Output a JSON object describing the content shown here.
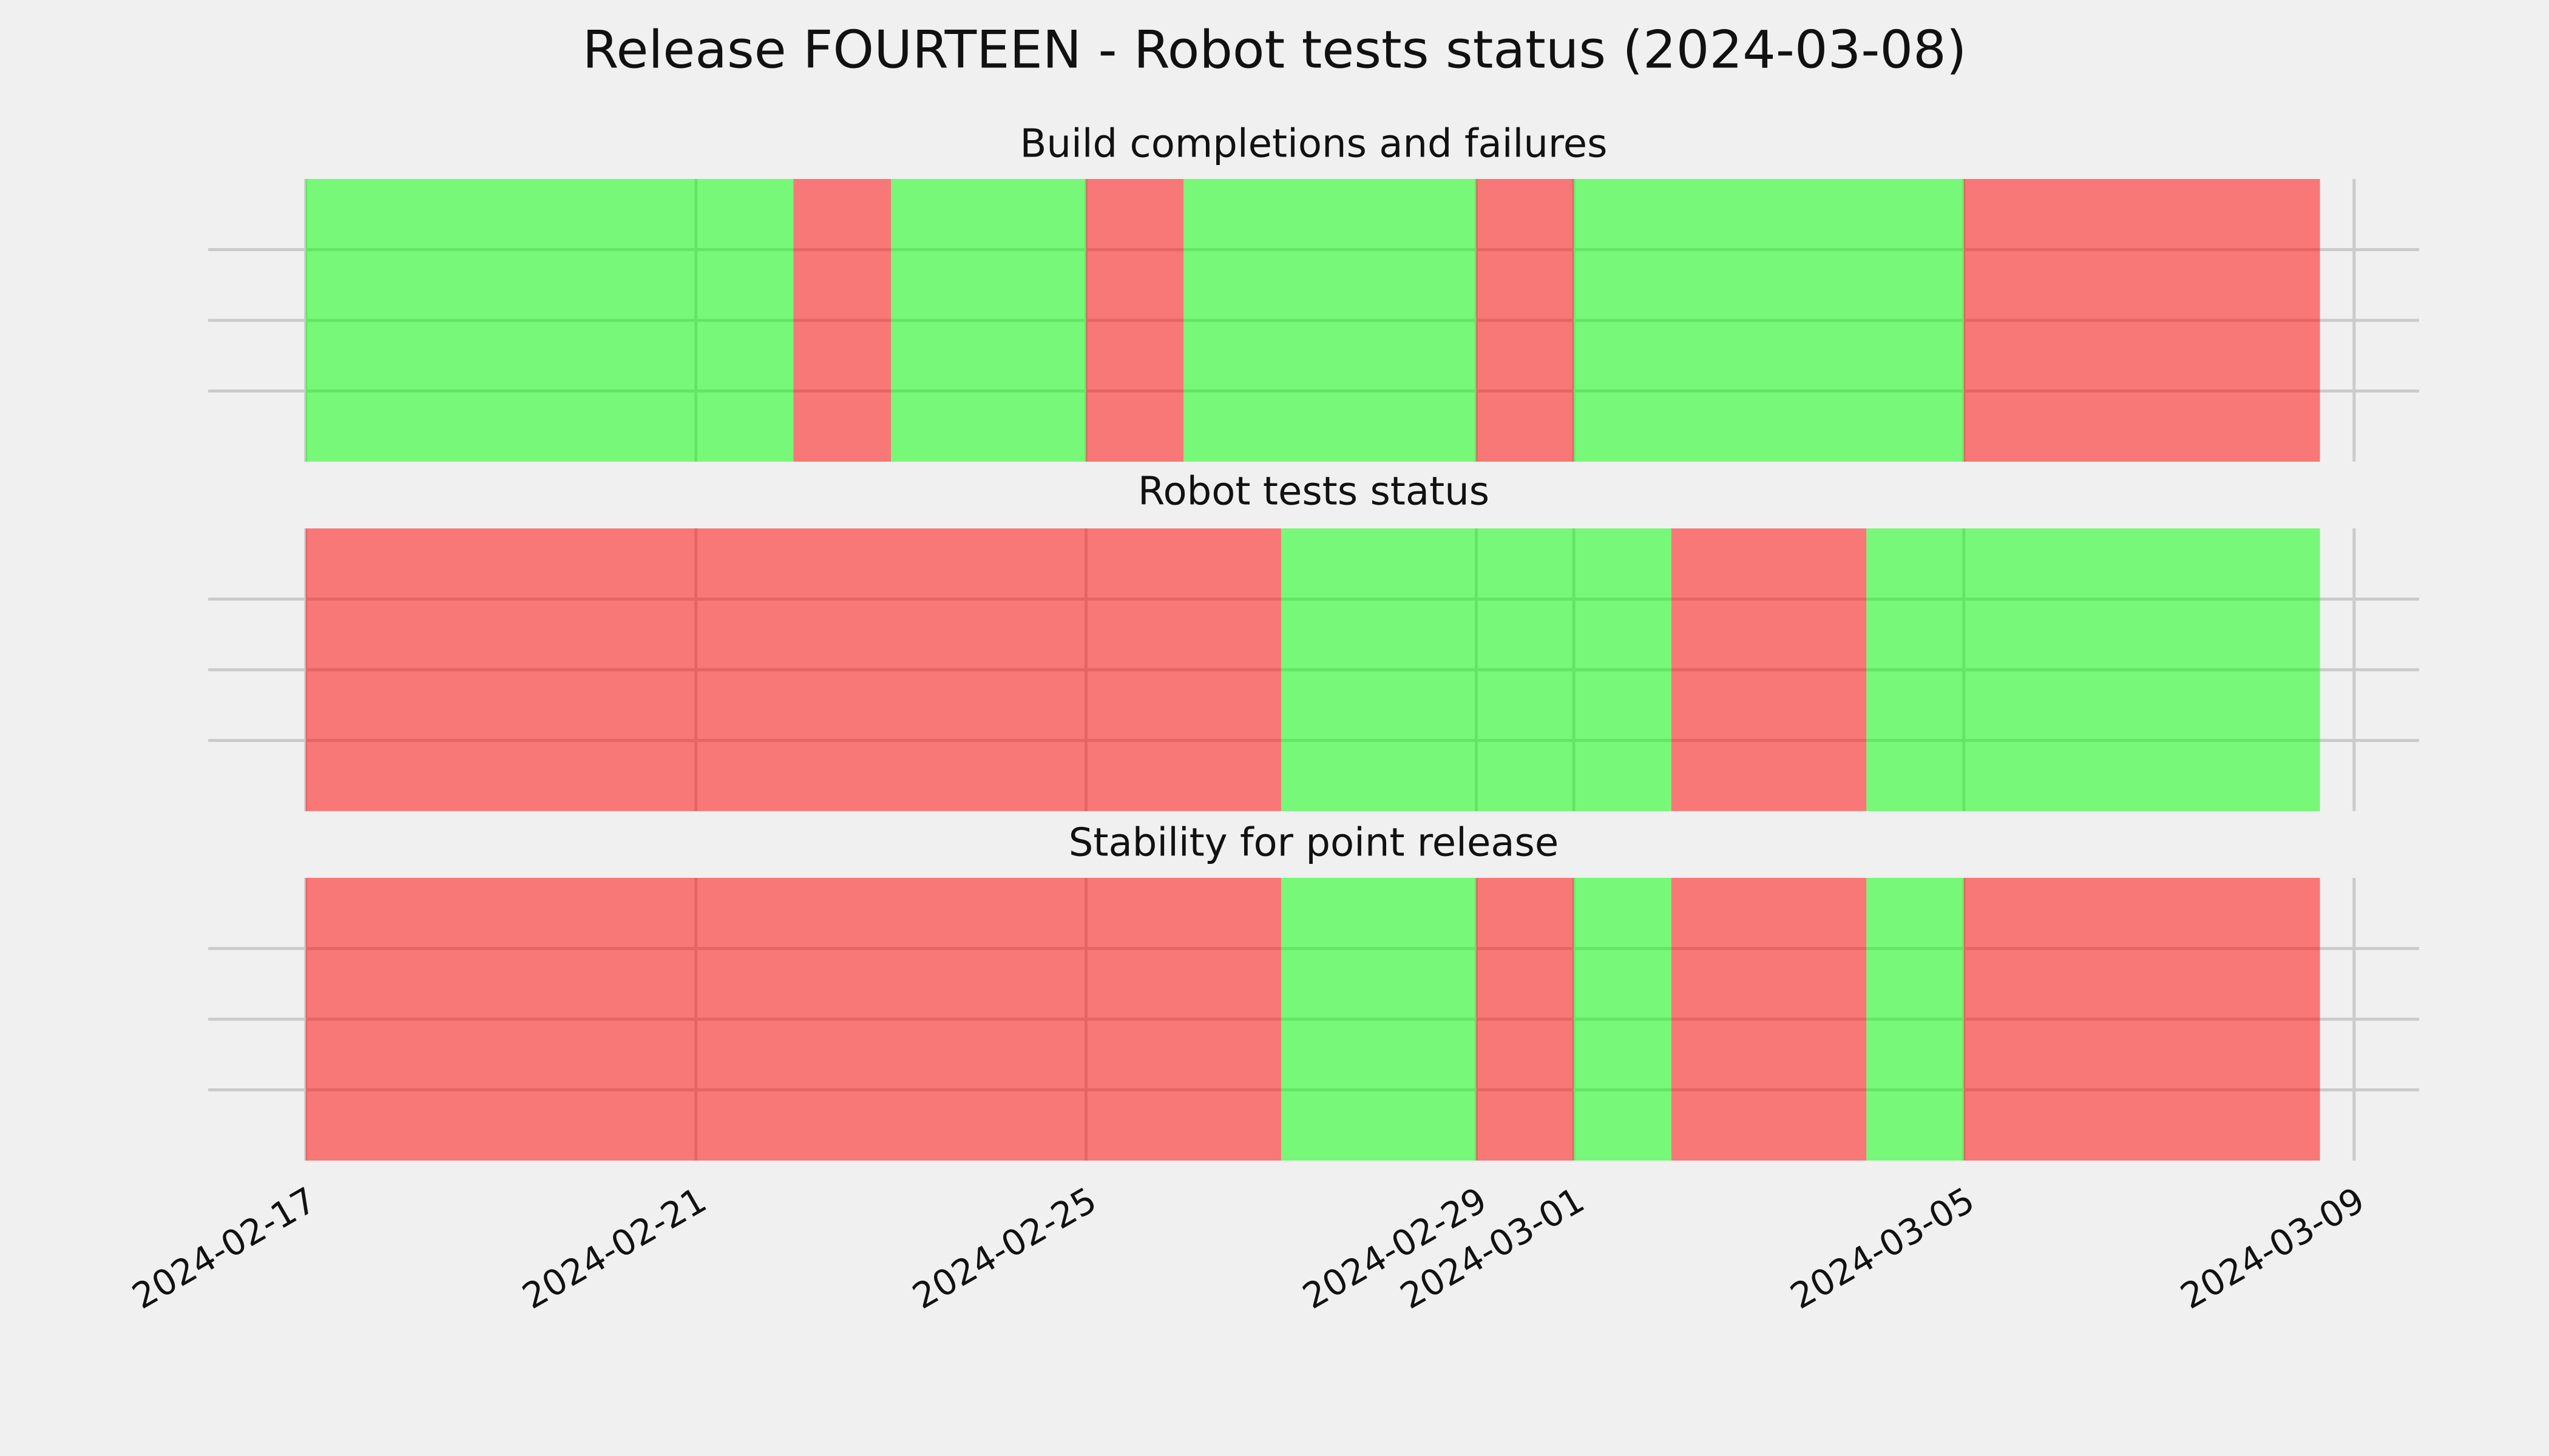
{
  "title": "Release FOURTEEN - Robot tests status (2024-03-08)",
  "xlim": [
    "2024-02-16",
    "2024-03-09T16:00"
  ],
  "xticks": [
    "2024-02-17",
    "2024-02-21",
    "2024-02-25",
    "2024-02-29",
    "2024-03-01",
    "2024-03-05",
    "2024-03-09"
  ],
  "chart_data": [
    {
      "type": "timeline",
      "title": "Build completions and failures",
      "x": [
        "2024-02-17",
        "2024-02-22",
        "2024-02-23",
        "2024-02-25",
        "2024-02-26",
        "2024-02-29",
        "2024-03-01",
        "2024-03-05",
        "2024-03-08T15:36"
      ],
      "colors": [
        "#00ff00",
        "#ff0000",
        "#00ff00",
        "#ff0000",
        "#00ff00",
        "#ff0000",
        "#00ff00",
        "#ff0000"
      ],
      "ylim": [
        0,
        1
      ],
      "yticks": [
        0.25,
        0.5,
        0.75
      ],
      "grid": true
    },
    {
      "type": "timeline",
      "title": "Robot tests status",
      "x": [
        "2024-02-17",
        "2024-02-27",
        "2024-03-02",
        "2024-03-04",
        "2024-03-08T15:36"
      ],
      "colors": [
        "#ff0000",
        "#00ff00",
        "#ff0000",
        "#00ff00"
      ],
      "ylim": [
        0,
        1
      ],
      "yticks": [
        0.25,
        0.5,
        0.75
      ],
      "grid": true
    },
    {
      "type": "timeline",
      "title": "Stability for point release",
      "x": [
        "2024-02-17",
        "2024-02-27",
        "2024-02-29",
        "2024-03-01",
        "2024-03-02",
        "2024-03-04",
        "2024-03-05",
        "2024-03-08T15:36"
      ],
      "colors": [
        "#ff0000",
        "#00ff00",
        "#ff0000",
        "#00ff00",
        "#ff0000",
        "#00ff00",
        "#ff0000"
      ],
      "ylim": [
        0,
        1
      ],
      "yticks": [
        0.25,
        0.5,
        0.75
      ],
      "grid": true
    }
  ]
}
